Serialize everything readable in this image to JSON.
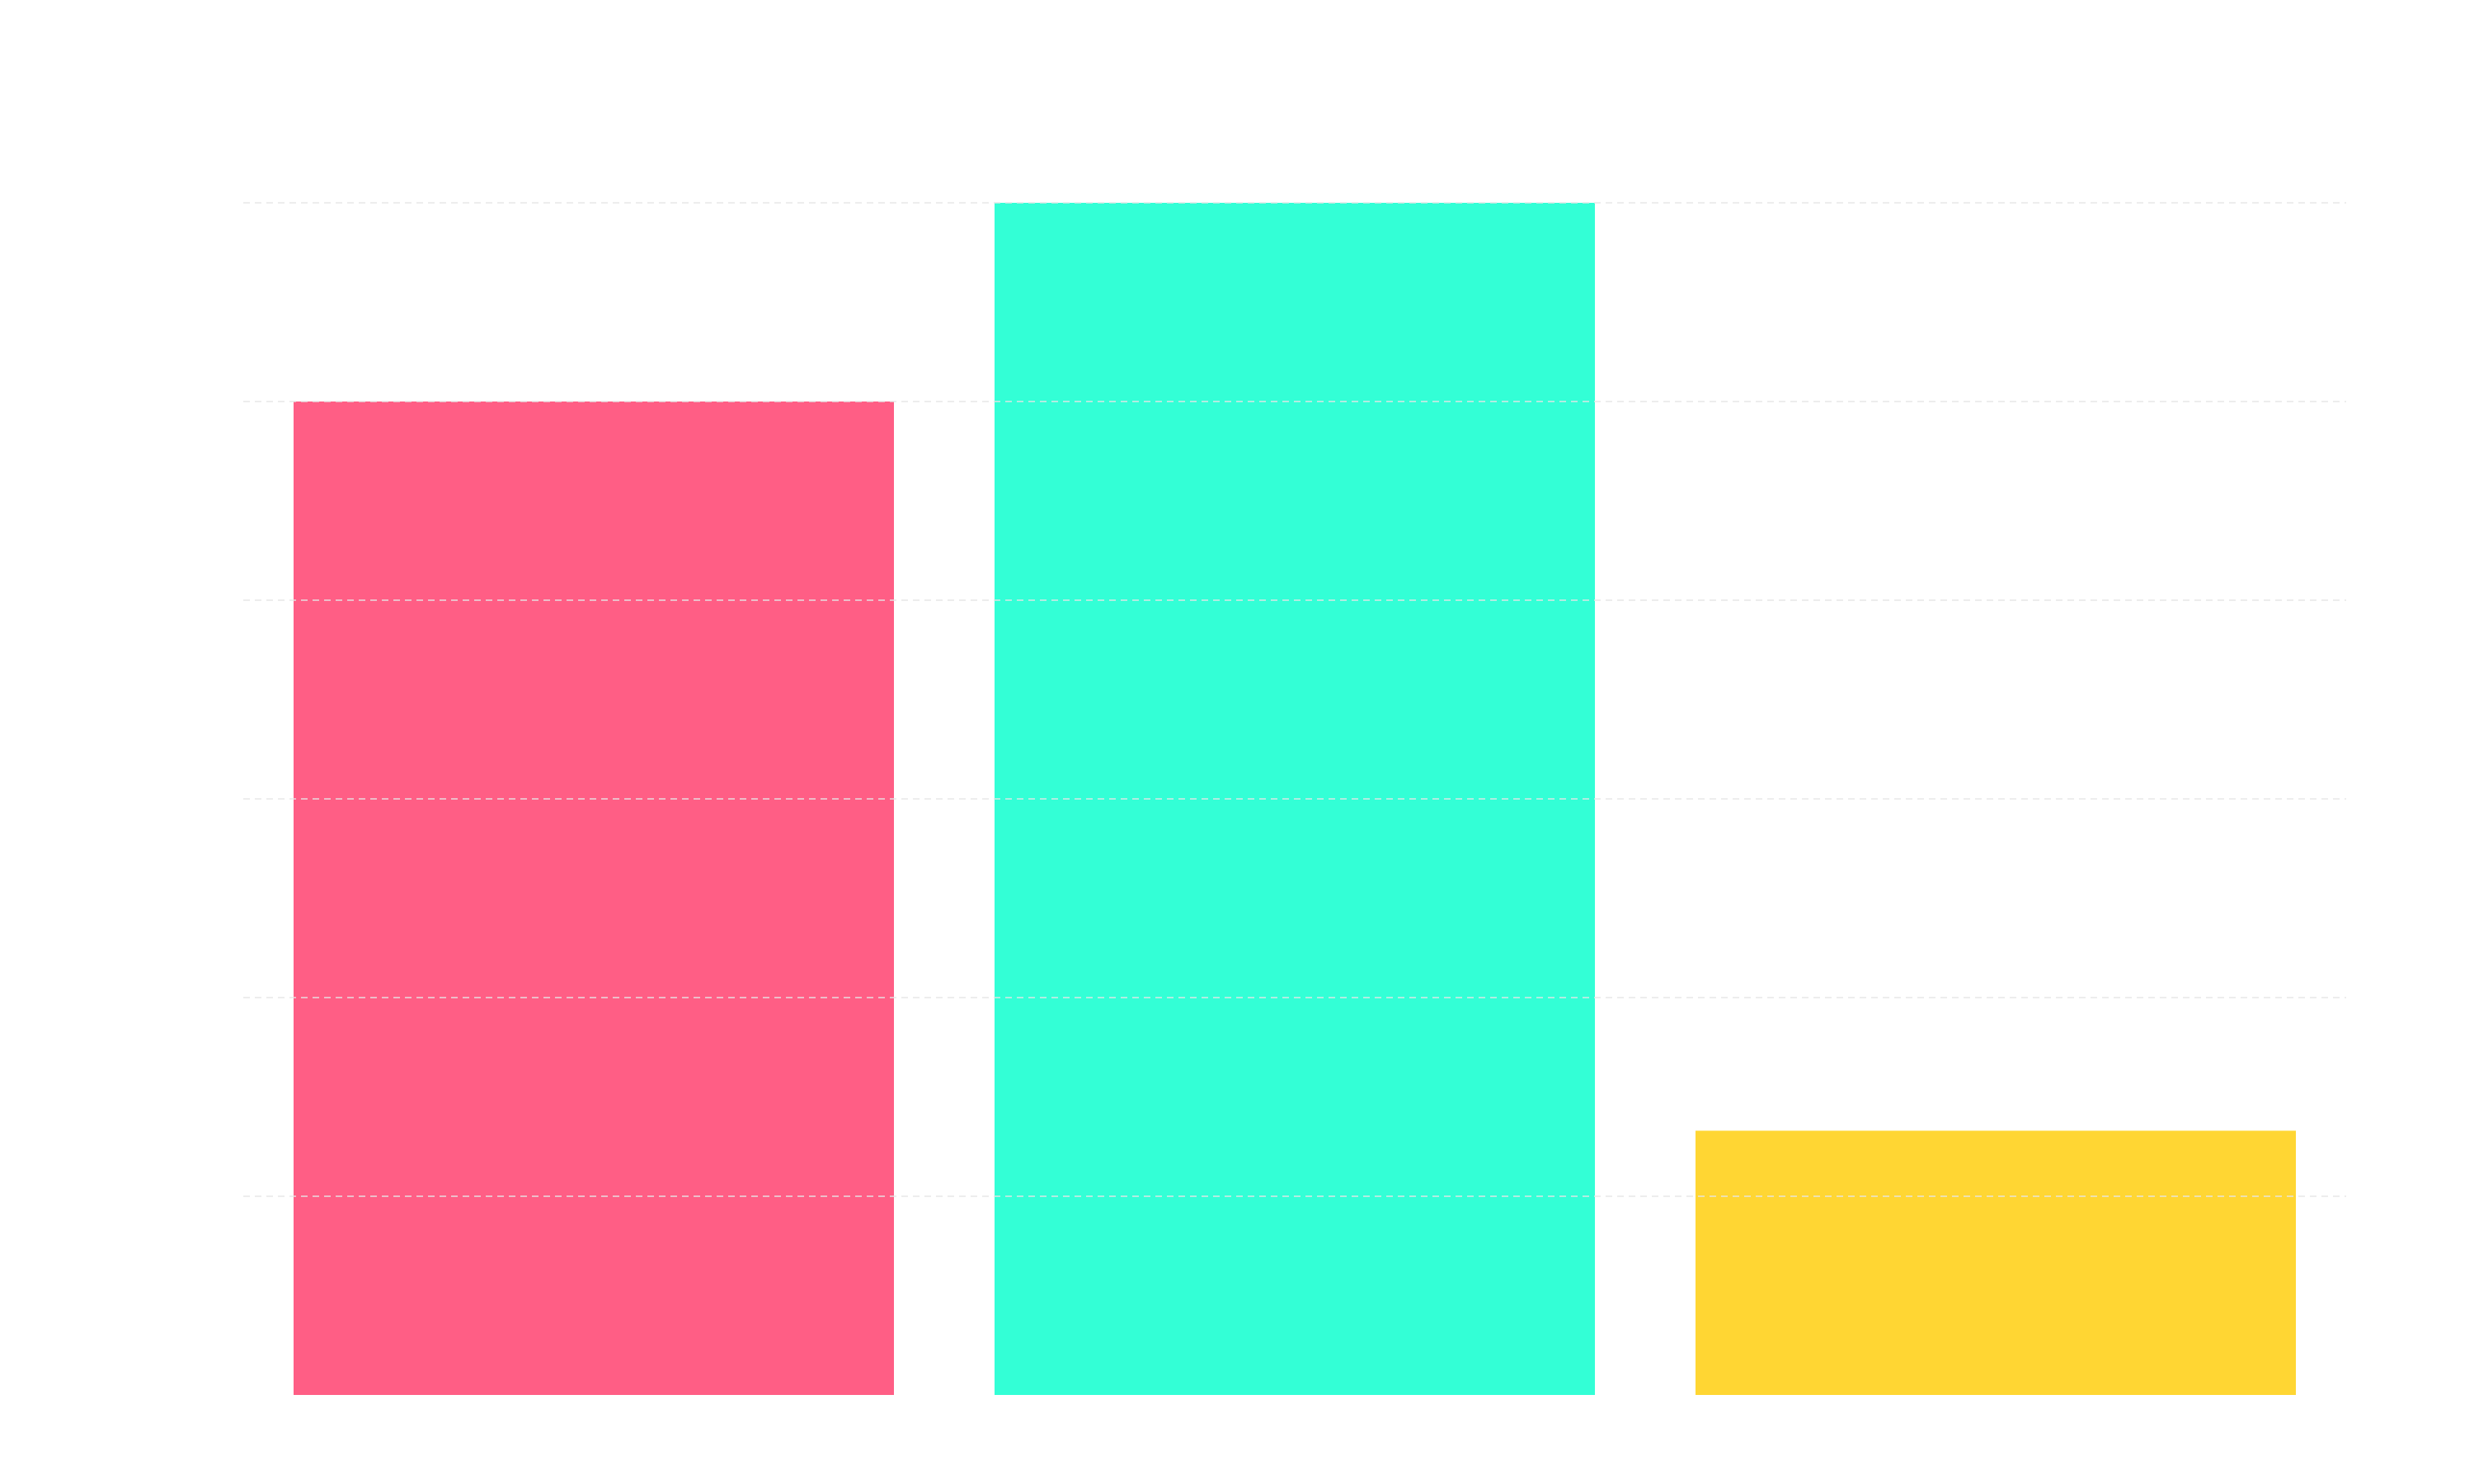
{
  "chart_data": {
    "type": "bar",
    "categories": [
      "",
      "",
      ""
    ],
    "values": [
      5,
      6,
      1.33
    ],
    "colors": [
      "#ff5e85",
      "#33ffd6",
      "#ffd633"
    ],
    "ylim": [
      0,
      6
    ],
    "y_ticks": [
      0,
      1,
      2,
      3,
      4,
      5,
      6
    ],
    "grid": true,
    "grid_color": "#e6e6e6",
    "grid_style": "dashed",
    "background": "#ffffff"
  }
}
